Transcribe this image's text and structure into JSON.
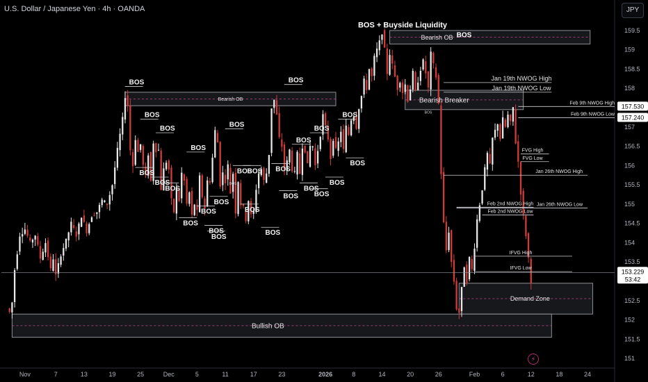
{
  "header": {
    "title": "U.S. Dollar / Japanese Yen · 4h · OANDA",
    "currency": "JPY"
  },
  "colors": {
    "background": "#000000",
    "candle_up": "#e8e8e8",
    "candle_down": "#d13b3b",
    "zone_fill": "#1b1c20",
    "zone_border": "#8d8f96",
    "midline": "#c4489a",
    "label_bg": "#ffffff",
    "label_text": "#000000",
    "axis_text": "#b2b5be"
  },
  "chart_data": {
    "type": "candlestick",
    "symbol": "USDJPY",
    "timeframe": "4h",
    "ylim": [
      150.75,
      159.75
    ],
    "y_ticks": [
      151.0,
      151.5,
      152.0,
      152.5,
      153.0,
      153.5,
      154.0,
      154.5,
      155.0,
      155.5,
      156.0,
      156.5,
      157.0,
      157.5,
      158.0,
      158.5,
      159.0,
      159.5
    ],
    "x_ticks": [
      {
        "label": "Nov",
        "i": 7
      },
      {
        "label": "7",
        "i": 19
      },
      {
        "label": "13",
        "i": 30
      },
      {
        "label": "19",
        "i": 41
      },
      {
        "label": "25",
        "i": 52
      },
      {
        "label": "Dec",
        "i": 63
      },
      {
        "label": "5",
        "i": 74
      },
      {
        "label": "11",
        "i": 85
      },
      {
        "label": "17",
        "i": 96
      },
      {
        "label": "23",
        "i": 107
      },
      {
        "label": "2026",
        "i": 124
      },
      {
        "label": "8",
        "i": 135
      },
      {
        "label": "14",
        "i": 146
      },
      {
        "label": "20",
        "i": 157
      },
      {
        "label": "26",
        "i": 168
      },
      {
        "label": "Feb",
        "i": 182
      },
      {
        "label": "6",
        "i": 193
      },
      {
        "label": "12",
        "i": 204
      },
      {
        "label": "18",
        "i": 215
      },
      {
        "label": "24",
        "i": 226
      }
    ],
    "close_points": [
      [
        0,
        152.3
      ],
      [
        1,
        152.2
      ],
      [
        2,
        152.45
      ],
      [
        3,
        153.3
      ],
      [
        5,
        154.2
      ],
      [
        7,
        154.35
      ],
      [
        9,
        154.0
      ],
      [
        11,
        154.2
      ],
      [
        13,
        153.6
      ],
      [
        15,
        154.0
      ],
      [
        17,
        153.3
      ],
      [
        18,
        153.6
      ],
      [
        19,
        153.15
      ],
      [
        21,
        153.7
      ],
      [
        23,
        154.05
      ],
      [
        25,
        154.5
      ],
      [
        27,
        154.2
      ],
      [
        29,
        154.7
      ],
      [
        31,
        154.3
      ],
      [
        33,
        154.7
      ],
      [
        35,
        154.8
      ],
      [
        37,
        155.1
      ],
      [
        39,
        155.0
      ],
      [
        41,
        155.5
      ],
      [
        43,
        156.4
      ],
      [
        45,
        157.2
      ],
      [
        46,
        157.8
      ],
      [
        47,
        157.55
      ],
      [
        48,
        156.4
      ],
      [
        49,
        156.0
      ],
      [
        50,
        156.7
      ],
      [
        51,
        156.35
      ],
      [
        52,
        156.55
      ],
      [
        53,
        156.0
      ],
      [
        54,
        155.7
      ],
      [
        55,
        156.3
      ],
      [
        56,
        155.6
      ],
      [
        57,
        156.6
      ],
      [
        58,
        156.4
      ],
      [
        59,
        156.4
      ],
      [
        60,
        155.4
      ],
      [
        61,
        155.9
      ],
      [
        62,
        156.1
      ],
      [
        63,
        155.9
      ],
      [
        64,
        155.1
      ],
      [
        65,
        154.8
      ],
      [
        66,
        155.4
      ],
      [
        67,
        155.1
      ],
      [
        68,
        155.8
      ],
      [
        69,
        155.6
      ],
      [
        70,
        155.0
      ],
      [
        71,
        155.3
      ],
      [
        72,
        154.7
      ],
      [
        73,
        155.0
      ],
      [
        74,
        154.8
      ],
      [
        75,
        155.7
      ],
      [
        76,
        155.2
      ],
      [
        77,
        154.9
      ],
      [
        78,
        155.6
      ],
      [
        79,
        155.6
      ],
      [
        80,
        156.2
      ],
      [
        81,
        156.9
      ],
      [
        82,
        156.6
      ],
      [
        83,
        155.5
      ],
      [
        84,
        155.8
      ],
      [
        85,
        155.6
      ],
      [
        86,
        156.0
      ],
      [
        87,
        155.3
      ],
      [
        88,
        155.8
      ],
      [
        89,
        154.8
      ],
      [
        90,
        155.6
      ],
      [
        91,
        155.0
      ],
      [
        92,
        154.9
      ],
      [
        93,
        154.6
      ],
      [
        94,
        155.1
      ],
      [
        95,
        154.7
      ],
      [
        96,
        154.8
      ],
      [
        97,
        155.4
      ],
      [
        98,
        155.8
      ],
      [
        99,
        155.9
      ],
      [
        100,
        155.6
      ],
      [
        101,
        155.8
      ],
      [
        102,
        156.3
      ],
      [
        103,
        157.5
      ],
      [
        104,
        157.7
      ],
      [
        105,
        157.3
      ],
      [
        106,
        156.7
      ],
      [
        107,
        156.5
      ],
      [
        108,
        155.9
      ],
      [
        109,
        156.1
      ],
      [
        110,
        156.4
      ],
      [
        111,
        155.9
      ],
      [
        112,
        155.8
      ],
      [
        113,
        156.3
      ],
      [
        114,
        155.8
      ],
      [
        115,
        156.5
      ],
      [
        116,
        156.4
      ],
      [
        117,
        156.0
      ],
      [
        118,
        156.5
      ],
      [
        119,
        156.5
      ],
      [
        120,
        156.0
      ],
      [
        121,
        156.4
      ],
      [
        122,
        156.8
      ],
      [
        123,
        157.3
      ],
      [
        124,
        157.0
      ],
      [
        125,
        156.7
      ],
      [
        126,
        156.2
      ],
      [
        127,
        156.7
      ],
      [
        128,
        156.4
      ],
      [
        129,
        156.6
      ],
      [
        130,
        156.9
      ],
      [
        131,
        156.4
      ],
      [
        132,
        157.0
      ],
      [
        133,
        156.8
      ],
      [
        134,
        157.2
      ],
      [
        135,
        157.3
      ],
      [
        136,
        157.0
      ],
      [
        137,
        157.5
      ],
      [
        138,
        157.8
      ],
      [
        139,
        158.2
      ],
      [
        140,
        158.0
      ],
      [
        141,
        158.5
      ],
      [
        142,
        158.3
      ],
      [
        143,
        158.8
      ],
      [
        144,
        159.0
      ],
      [
        145,
        159.2
      ],
      [
        146,
        159.45
      ],
      [
        147,
        159.0
      ],
      [
        148,
        158.4
      ],
      [
        149,
        158.9
      ],
      [
        150,
        158.6
      ],
      [
        151,
        158.3
      ],
      [
        152,
        158.0
      ],
      [
        153,
        158.2
      ],
      [
        154,
        157.9
      ],
      [
        155,
        158.1
      ],
      [
        156,
        157.7
      ],
      [
        157,
        158.0
      ],
      [
        158,
        158.4
      ],
      [
        159,
        157.9
      ],
      [
        160,
        158.2
      ],
      [
        161,
        158.5
      ],
      [
        162,
        158.7
      ],
      [
        163,
        158.4
      ],
      [
        164,
        158.0
      ],
      [
        165,
        158.9
      ],
      [
        166,
        158.6
      ],
      [
        167,
        158.3
      ],
      [
        168,
        157.6
      ],
      [
        169,
        155.8
      ],
      [
        170,
        154.5
      ],
      [
        171,
        153.8
      ],
      [
        172,
        154.3
      ],
      [
        173,
        153.5
      ],
      [
        174,
        153.0
      ],
      [
        175,
        152.3
      ],
      [
        176,
        152.2
      ],
      [
        177,
        152.8
      ],
      [
        178,
        153.4
      ],
      [
        179,
        153.0
      ],
      [
        180,
        153.6
      ],
      [
        181,
        153.3
      ],
      [
        182,
        153.9
      ],
      [
        183,
        154.6
      ],
      [
        184,
        155.0
      ],
      [
        185,
        155.4
      ],
      [
        186,
        155.9
      ],
      [
        187,
        156.3
      ],
      [
        188,
        156.0
      ],
      [
        189,
        156.7
      ],
      [
        190,
        156.9
      ],
      [
        191,
        157.1
      ],
      [
        192,
        156.7
      ],
      [
        193,
        157.2
      ],
      [
        194,
        157.0
      ],
      [
        195,
        157.3
      ],
      [
        196,
        157.1
      ],
      [
        197,
        157.5
      ],
      [
        198,
        156.6
      ],
      [
        199,
        156.1
      ],
      [
        200,
        155.3
      ],
      [
        201,
        154.7
      ],
      [
        202,
        154.2
      ],
      [
        203,
        153.6
      ],
      [
        204,
        153.0
      ]
    ],
    "n_slots": 236,
    "bullish_ob_label": "Bullish OB",
    "demand_zone_label": "Demand Zone",
    "zones": [
      {
        "label": "Bearish OB",
        "i0": 149,
        "i1": 227,
        "top": 159.5,
        "bottom": 159.15
      },
      {
        "label": "Bearish OB",
        "i0": 46,
        "i1": 128,
        "top": 157.9,
        "bottom": 157.55
      },
      {
        "label": "Bearish Breaker",
        "i0": 155,
        "i1": 201,
        "top": 157.95,
        "bottom": 157.45
      },
      {
        "label": "Demand Zone",
        "i0": 176,
        "i1": 228,
        "top": 152.95,
        "bottom": 152.15
      },
      {
        "label": "Bullish OB",
        "i0": 2,
        "i1": 212,
        "top": 152.15,
        "bottom": 151.55
      }
    ],
    "level_lines": [
      {
        "label": "Jan 19th NWOG High",
        "i0": 170,
        "i1": 212,
        "y": 158.15
      },
      {
        "label": "Jan 19th NWOG Low",
        "i0": 170,
        "i1": 212,
        "y": 157.9
      },
      {
        "label": "Feb 9th NWOG High",
        "i0": 199,
        "i1": 238,
        "y": 157.53
      },
      {
        "label": "Feb 9th NWOG Low",
        "i0": 199,
        "i1": 238,
        "y": 157.24
      },
      {
        "label": "FVG High",
        "i0": 200,
        "i1": 211,
        "y": 156.3
      },
      {
        "label": "FVG Low",
        "i0": 200,
        "i1": 211,
        "y": 156.1
      },
      {
        "label": "Jan 26th NWOG High",
        "i0": 170,
        "i1": 226,
        "y": 155.75
      },
      {
        "label": "Feb 2nd NWOG High",
        "i0": 175,
        "i1": 205,
        "y": 154.92
      },
      {
        "label": "Jan 26th NWOG Low",
        "i0": 175,
        "i1": 226,
        "y": 154.9
      },
      {
        "label": "Feb 2nd NWOG Low",
        "i0": 185,
        "i1": 205,
        "y": 154.72
      },
      {
        "label": "IFVG High",
        "i0": 182,
        "i1": 220,
        "y": 153.65
      },
      {
        "label": "IFVG Low",
        "i0": 182,
        "i1": 220,
        "y": 153.25
      }
    ],
    "bos_marks": [
      {
        "label": "BOS",
        "i": 47,
        "y": 158.05,
        "side": "above"
      },
      {
        "label": "BOS",
        "i": 53,
        "y": 157.2,
        "side": "above"
      },
      {
        "label": "BOS",
        "i": 59,
        "y": 156.85,
        "side": "above"
      },
      {
        "label": "BOS",
        "i": 71,
        "y": 156.35,
        "side": "above"
      },
      {
        "label": "BOS",
        "i": 86,
        "y": 156.95,
        "side": "above"
      },
      {
        "label": "BOS",
        "i": 109,
        "y": 158.1,
        "side": "above"
      },
      {
        "label": "BOS",
        "i": 112,
        "y": 156.55,
        "side": "above"
      },
      {
        "label": "BOS",
        "i": 119,
        "y": 156.85,
        "side": "above"
      },
      {
        "label": "BOS",
        "i": 130,
        "y": 157.2,
        "side": "above"
      },
      {
        "label": "BOS",
        "i": 51,
        "y": 155.95,
        "side": "below"
      },
      {
        "label": "BOS",
        "i": 57,
        "y": 155.7,
        "side": "below"
      },
      {
        "label": "BOS",
        "i": 61,
        "y": 155.55,
        "side": "below"
      },
      {
        "label": "BOS",
        "i": 68,
        "y": 154.65,
        "side": "below"
      },
      {
        "label": "BOS",
        "i": 75,
        "y": 154.95,
        "side": "below"
      },
      {
        "label": "BOS",
        "i": 78,
        "y": 154.45,
        "side": "below"
      },
      {
        "label": "BOS",
        "i": 80,
        "y": 155.2,
        "side": "below"
      },
      {
        "label": "BOS",
        "i": 79,
        "y": 154.3,
        "side": "below"
      },
      {
        "label": "BOS",
        "i": 89,
        "y": 156.0,
        "side": "below"
      },
      {
        "label": "BOS",
        "i": 93,
        "y": 156.0,
        "side": "below"
      },
      {
        "label": "BOS",
        "i": 92,
        "y": 155.0,
        "side": "below"
      },
      {
        "label": "BOS",
        "i": 100,
        "y": 154.4,
        "side": "below"
      },
      {
        "label": "BOS",
        "i": 104,
        "y": 156.05,
        "side": "below"
      },
      {
        "label": "BOS",
        "i": 107,
        "y": 155.35,
        "side": "below"
      },
      {
        "label": "BOS",
        "i": 115,
        "y": 155.55,
        "side": "below"
      },
      {
        "label": "BOS",
        "i": 119,
        "y": 155.4,
        "side": "below"
      },
      {
        "label": "BOS",
        "i": 125,
        "y": 155.7,
        "side": "below"
      },
      {
        "label": "BOS",
        "i": 133,
        "y": 156.2,
        "side": "below"
      }
    ],
    "top_annotation": {
      "label": "BOS + Buyside Liquidity",
      "i": 154,
      "y": 159.65
    },
    "bos_above_bearish_ob": {
      "label": "BOS",
      "i": 175,
      "y": 159.4
    },
    "tiny_marks": [
      {
        "label": "BOS",
        "i": 164,
        "y": 157.35
      },
      {
        "label": "BOS",
        "i": 88,
        "y": 155.5
      }
    ],
    "last_price": {
      "value": "153.229",
      "countdown": "53:42",
      "y": 153.229
    },
    "price_tags": [
      {
        "label": "157.530",
        "y": 157.53
      },
      {
        "label": "157.240",
        "y": 157.24
      }
    ]
  }
}
